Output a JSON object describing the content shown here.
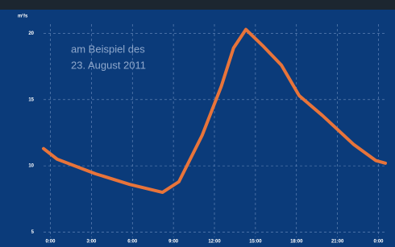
{
  "chart_data": {
    "type": "line",
    "ylabel": "m³/s",
    "annotation": [
      "am Beispiel des",
      "23. August 2011"
    ],
    "x": [
      -0.5,
      0.5,
      3.3,
      5.8,
      8.2,
      9.4,
      11.1,
      12.5,
      13.4,
      14.3,
      15.6,
      16.9,
      18.2,
      19.9,
      22.2,
      23.8,
      24.5
    ],
    "series": [
      {
        "color": "#e8743a",
        "values": [
          11.3,
          10.5,
          9.4,
          8.6,
          8.0,
          8.8,
          12.3,
          16.0,
          18.9,
          20.3,
          19.0,
          17.6,
          15.3,
          13.8,
          11.6,
          10.4,
          10.2
        ]
      }
    ],
    "xlim": [
      -0.5,
      24.5
    ],
    "xticks": [
      {
        "value": 0,
        "label": "0:00"
      },
      {
        "value": 3,
        "label": "3:00"
      },
      {
        "value": 6,
        "label": "6:00"
      },
      {
        "value": 9,
        "label": "9:00"
      },
      {
        "value": 12,
        "label": "12:00"
      },
      {
        "value": 15,
        "label": "15:00"
      },
      {
        "value": 18,
        "label": "18:00"
      },
      {
        "value": 21,
        "label": "21:00"
      },
      {
        "value": 24,
        "label": "0:00"
      }
    ],
    "ylim": [
      4.6,
      20.7
    ],
    "yticks": [
      5,
      10,
      15,
      20
    ],
    "grid": true
  }
}
